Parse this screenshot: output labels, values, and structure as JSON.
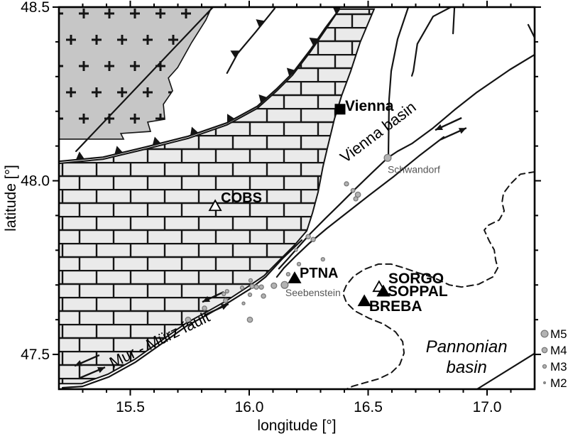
{
  "figure": {
    "xlabel": "longitude [°]",
    "ylabel": "latitude [°]",
    "lon_range": [
      15.2,
      17.2
    ],
    "lat_range": [
      47.4,
      48.5
    ],
    "x_major_ticks": [
      15.5,
      16.0,
      16.5,
      17.0
    ],
    "x_major_labels": [
      "15.5",
      "16.0",
      "16.5",
      "17.0"
    ],
    "y_major_ticks": [
      47.5,
      48.0,
      48.5
    ],
    "y_major_labels": [
      "47.5",
      "48.0",
      "48.5"
    ],
    "minor_tick_step": 0.1
  },
  "colors": {
    "line": "#141414",
    "crystalline_fill": "#c6c6c6",
    "carbonate_fill": "#eaeaea",
    "earthquake_fill": "#b3b3b3",
    "earthquake_stroke": "#7a7a7a",
    "gray_label": "#565656"
  },
  "legend": {
    "items": [
      {
        "label": "M5",
        "mag": 5
      },
      {
        "label": "M4",
        "mag": 4
      },
      {
        "label": "M3",
        "mag": 3
      },
      {
        "label": "M2",
        "mag": 2
      }
    ]
  },
  "regions": {
    "crystalline": {
      "name": "crystalline-basement",
      "points": [
        [
          15.2,
          48.5
        ],
        [
          15.842,
          48.5
        ],
        [
          15.818,
          48.463
        ],
        [
          15.758,
          48.398
        ],
        [
          15.699,
          48.326
        ],
        [
          15.66,
          48.296
        ],
        [
          15.678,
          48.259
        ],
        [
          15.639,
          48.22
        ],
        [
          15.645,
          48.177
        ],
        [
          15.573,
          48.169
        ],
        [
          15.585,
          48.142
        ],
        [
          15.46,
          48.136
        ],
        [
          15.472,
          48.12
        ],
        [
          15.2,
          48.12
        ]
      ]
    },
    "carbonate": {
      "name": "calcareous-alps",
      "points": [
        [
          15.2,
          48.05
        ],
        [
          15.385,
          48.062
        ],
        [
          15.564,
          48.091
        ],
        [
          15.743,
          48.122
        ],
        [
          15.907,
          48.161
        ],
        [
          16.033,
          48.208
        ],
        [
          16.116,
          48.259
        ],
        [
          16.182,
          48.304
        ],
        [
          16.257,
          48.371
        ],
        [
          16.319,
          48.433
        ],
        [
          16.379,
          48.494
        ],
        [
          16.525,
          48.494
        ],
        [
          16.466,
          48.398
        ],
        [
          16.427,
          48.316
        ],
        [
          16.388,
          48.244
        ],
        [
          16.358,
          48.177
        ],
        [
          16.331,
          48.101
        ],
        [
          16.31,
          48.04
        ],
        [
          16.29,
          47.968
        ],
        [
          16.266,
          47.907
        ],
        [
          16.242,
          47.856
        ],
        [
          16.191,
          47.815
        ],
        [
          16.131,
          47.774
        ],
        [
          16.063,
          47.727
        ],
        [
          15.997,
          47.696
        ],
        [
          15.901,
          47.653
        ],
        [
          15.818,
          47.621
        ],
        [
          15.734,
          47.59
        ],
        [
          15.633,
          47.541
        ],
        [
          15.519,
          47.486
        ],
        [
          15.406,
          47.443
        ],
        [
          15.296,
          47.416
        ],
        [
          15.2,
          47.416
        ]
      ]
    }
  },
  "faults": [
    {
      "name": "basement-fault",
      "style": "solid",
      "points": [
        [
          15.272,
          48.085
        ],
        [
          15.848,
          48.5
        ]
      ]
    },
    {
      "name": "thrust-upper",
      "style": "thrust",
      "points": [
        [
          15.907,
          48.31
        ],
        [
          15.952,
          48.367
        ],
        [
          16.027,
          48.428
        ],
        [
          16.107,
          48.496
        ]
      ]
    },
    {
      "name": "alpine-front-thrust",
      "style": "thrust",
      "points": [
        [
          15.2,
          48.056
        ],
        [
          15.385,
          48.068
        ],
        [
          15.564,
          48.097
        ],
        [
          15.743,
          48.128
        ],
        [
          15.907,
          48.167
        ],
        [
          16.033,
          48.214
        ],
        [
          16.116,
          48.265
        ],
        [
          16.182,
          48.31
        ],
        [
          16.257,
          48.377
        ],
        [
          16.319,
          48.439
        ],
        [
          16.379,
          48.494
        ]
      ]
    },
    {
      "name": "mur-muerz-fault",
      "style": "solid",
      "points": [
        [
          16.221,
          47.829
        ],
        [
          16.14,
          47.776
        ],
        [
          16.069,
          47.723
        ],
        [
          16.003,
          47.688
        ],
        [
          15.907,
          47.647
        ],
        [
          15.821,
          47.613
        ],
        [
          15.737,
          47.582
        ],
        [
          15.636,
          47.533
        ],
        [
          15.522,
          47.478
        ],
        [
          15.409,
          47.435
        ],
        [
          15.299,
          47.408
        ],
        [
          15.215,
          47.404
        ]
      ]
    },
    {
      "name": "vienna-basin-transfer-north",
      "style": "solid",
      "points": [
        [
          17.2,
          48.363
        ],
        [
          17.096,
          48.32
        ],
        [
          16.958,
          48.255
        ],
        [
          16.863,
          48.204
        ],
        [
          16.773,
          48.152
        ],
        [
          16.684,
          48.107
        ],
        [
          16.624,
          48.085
        ],
        [
          16.582,
          48.066
        ],
        [
          16.516,
          48.023
        ],
        [
          16.445,
          47.976
        ],
        [
          16.379,
          47.931
        ],
        [
          16.319,
          47.891
        ],
        [
          16.26,
          47.85
        ],
        [
          16.206,
          47.809
        ],
        [
          16.161,
          47.774
        ],
        [
          16.125,
          47.747
        ]
      ]
    },
    {
      "name": "vienna-basin-transfer-south",
      "style": "solid",
      "points": [
        [
          16.818,
          48.126
        ],
        [
          16.713,
          48.071
        ],
        [
          16.609,
          48.013
        ],
        [
          16.504,
          47.958
        ],
        [
          16.409,
          47.907
        ],
        [
          16.325,
          47.862
        ],
        [
          16.254,
          47.821
        ],
        [
          16.191,
          47.78
        ],
        [
          16.146,
          47.749
        ],
        [
          16.116,
          47.723
        ]
      ]
    },
    {
      "name": "vienna-fault",
      "style": "solid",
      "points": [
        [
          16.669,
          48.5
        ],
        [
          16.624,
          48.408
        ],
        [
          16.597,
          48.316
        ],
        [
          16.588,
          48.234
        ],
        [
          16.585,
          48.07
        ]
      ]
    },
    {
      "name": "branch-fault",
      "style": "solid",
      "points": [
        [
          16.848,
          48.5
        ],
        [
          16.773,
          48.473
        ],
        [
          16.707,
          48.394
        ],
        [
          16.69,
          48.316
        ],
        [
          16.684,
          48.302
        ]
      ]
    },
    {
      "name": "short-fault",
      "style": "solid",
      "points": [
        [
          16.863,
          48.5
        ],
        [
          16.857,
          48.424
        ]
      ]
    },
    {
      "name": "ne-corner-fault",
      "style": "solid",
      "points": [
        [
          17.173,
          48.449
        ],
        [
          17.203,
          48.408
        ]
      ]
    },
    {
      "name": "se-corner-fault",
      "style": "solid",
      "points": [
        [
          16.958,
          47.4
        ],
        [
          17.203,
          47.504
        ]
      ]
    },
    {
      "name": "basin-outline",
      "style": "dashed",
      "points": [
        [
          17.203,
          48.026
        ],
        [
          17.14,
          48.019
        ],
        [
          17.099,
          47.991
        ],
        [
          17.069,
          47.964
        ],
        [
          17.063,
          47.938
        ],
        [
          17.072,
          47.913
        ],
        [
          17.051,
          47.887
        ],
        [
          17.006,
          47.872
        ],
        [
          16.988,
          47.858
        ],
        [
          17.009,
          47.827
        ],
        [
          17.03,
          47.801
        ],
        [
          17.036,
          47.772
        ],
        [
          17.045,
          47.749
        ],
        [
          17.024,
          47.723
        ],
        [
          16.964,
          47.702
        ],
        [
          16.893,
          47.694
        ],
        [
          16.842,
          47.7
        ],
        [
          16.776,
          47.721
        ],
        [
          16.71,
          47.735
        ],
        [
          16.651,
          47.749
        ],
        [
          16.597,
          47.76
        ],
        [
          16.543,
          47.76
        ],
        [
          16.484,
          47.745
        ],
        [
          16.439,
          47.725
        ],
        [
          16.409,
          47.7
        ],
        [
          16.394,
          47.676
        ],
        [
          16.409,
          47.649
        ],
        [
          16.445,
          47.625
        ],
        [
          16.504,
          47.604
        ],
        [
          16.564,
          47.588
        ],
        [
          16.615,
          47.565
        ],
        [
          16.645,
          47.537
        ],
        [
          16.651,
          47.504
        ],
        [
          16.633,
          47.471
        ],
        [
          16.597,
          47.447
        ],
        [
          16.546,
          47.43
        ],
        [
          16.484,
          47.418
        ],
        [
          16.433,
          47.408
        ],
        [
          16.409,
          47.4
        ]
      ]
    }
  ],
  "slip_arrows": [
    {
      "from": [
        16.893,
        48.181
      ],
      "to": [
        16.782,
        48.146
      ]
    },
    {
      "from": [
        16.803,
        48.118
      ],
      "to": [
        16.913,
        48.152
      ]
    },
    {
      "from": [
        15.893,
        47.68
      ],
      "to": [
        15.803,
        47.651
      ]
    },
    {
      "from": [
        15.824,
        47.617
      ],
      "to": [
        15.913,
        47.645
      ]
    },
    {
      "from": [
        15.37,
        47.498
      ],
      "to": [
        15.266,
        47.467
      ]
    },
    {
      "from": [
        15.287,
        47.432
      ],
      "to": [
        15.394,
        47.463
      ]
    }
  ],
  "earthquakes": [
    {
      "lon": 16.582,
      "lat": 48.066,
      "mag": 5.0
    },
    {
      "lon": 16.409,
      "lat": 47.991,
      "mag": 3.4
    },
    {
      "lon": 16.436,
      "lat": 47.972,
      "mag": 3.2
    },
    {
      "lon": 16.457,
      "lat": 47.96,
      "mag": 4.0
    },
    {
      "lon": 16.448,
      "lat": 47.948,
      "mag": 3.4
    },
    {
      "lon": 16.248,
      "lat": 47.839,
      "mag": 3.5
    },
    {
      "lon": 16.269,
      "lat": 47.831,
      "mag": 3.5
    },
    {
      "lon": 16.197,
      "lat": 47.801,
      "mag": 2.6
    },
    {
      "lon": 16.31,
      "lat": 47.774,
      "mag": 3.0
    },
    {
      "lon": 16.209,
      "lat": 47.76,
      "mag": 3.0
    },
    {
      "lon": 16.164,
      "lat": 47.731,
      "mag": 3.0
    },
    {
      "lon": 16.149,
      "lat": 47.7,
      "mag": 5.0
    },
    {
      "lon": 16.104,
      "lat": 47.698,
      "mag": 4.2
    },
    {
      "lon": 16.006,
      "lat": 47.713,
      "mag": 3.0
    },
    {
      "lon": 16.051,
      "lat": 47.694,
      "mag": 3.5
    },
    {
      "lon": 16.03,
      "lat": 47.694,
      "mag": 3.5
    },
    {
      "lon": 16.012,
      "lat": 47.696,
      "mag": 3.5
    },
    {
      "lon": 15.97,
      "lat": 47.692,
      "mag": 3.0
    },
    {
      "lon": 16.003,
      "lat": 47.672,
      "mag": 3.0
    },
    {
      "lon": 16.06,
      "lat": 47.668,
      "mag": 3.5
    },
    {
      "lon": 15.976,
      "lat": 47.647,
      "mag": 2.6
    },
    {
      "lon": 16.003,
      "lat": 47.6,
      "mag": 4.0
    },
    {
      "lon": 15.901,
      "lat": 47.655,
      "mag": 3.5
    },
    {
      "lon": 15.893,
      "lat": 47.674,
      "mag": 3.0
    },
    {
      "lon": 15.907,
      "lat": 47.682,
      "mag": 3.0
    },
    {
      "lon": 15.812,
      "lat": 47.633,
      "mag": 3.5
    },
    {
      "lon": 15.743,
      "lat": 47.6,
      "mag": 4.0
    }
  ],
  "stations": [
    {
      "name": "COBS",
      "marker": "open",
      "lon": 15.857,
      "lat": 47.927
    },
    {
      "name": "PTNA",
      "marker": "filled",
      "lon": 16.191,
      "lat": 47.719
    },
    {
      "name": "SORGO",
      "marker": "open",
      "lon": 16.546,
      "lat": 47.694
    },
    {
      "name": "SOPPAL",
      "marker": "filled",
      "lon": 16.564,
      "lat": 47.681
    },
    {
      "name": "BREBA",
      "marker": "filled",
      "lon": 16.484,
      "lat": 47.653
    }
  ],
  "cities": [
    {
      "name": "Vienna",
      "lon": 16.382,
      "lat": 48.206
    }
  ],
  "labels": [
    {
      "text": "Vienna",
      "lon": 16.403,
      "lat": 48.201,
      "size": 21,
      "weight": "bold",
      "anchor": "start"
    },
    {
      "text": "Vienna basin",
      "lon": 16.555,
      "lat": 48.128,
      "size": 22,
      "rotate": -37,
      "anchor": "middle"
    },
    {
      "text": "Mur - Mürz fault",
      "lon": 15.633,
      "lat": 47.529,
      "size": 22,
      "rotate": -26,
      "anchor": "middle"
    },
    {
      "text": "Pannonian",
      "lon": 16.914,
      "lat": 47.506,
      "size": 24,
      "style": "italic",
      "anchor": "middle"
    },
    {
      "text": "basin",
      "lon": 16.914,
      "lat": 47.447,
      "size": 24,
      "style": "italic",
      "anchor": "middle"
    },
    {
      "text": "Schwandorf",
      "lon": 16.582,
      "lat": 48.023,
      "size": 14,
      "color": "#565656",
      "anchor": "start"
    },
    {
      "text": "Seebenstein",
      "lon": 16.152,
      "lat": 47.668,
      "size": 14,
      "color": "#565656",
      "anchor": "start"
    },
    {
      "text": "COBS",
      "lon": 15.881,
      "lat": 47.938,
      "size": 20,
      "weight": "bold",
      "anchor": "start"
    },
    {
      "text": "PTNA",
      "lon": 16.212,
      "lat": 47.721,
      "size": 20,
      "weight": "bold",
      "anchor": "start"
    },
    {
      "text": "SORGO",
      "lon": 16.585,
      "lat": 47.705,
      "size": 21,
      "weight": "bold",
      "anchor": "start"
    },
    {
      "text": "SOPPAL",
      "lon": 16.582,
      "lat": 47.668,
      "size": 21,
      "weight": "bold",
      "anchor": "start"
    },
    {
      "text": "BREBA",
      "lon": 16.504,
      "lat": 47.625,
      "size": 21,
      "weight": "bold",
      "anchor": "start"
    }
  ]
}
